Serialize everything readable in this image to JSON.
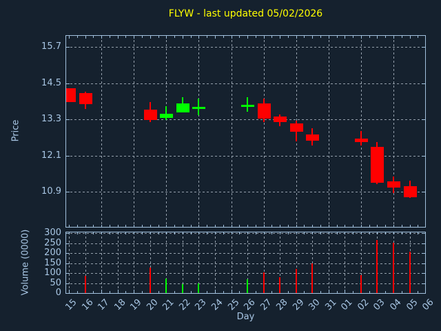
{
  "title": "FLYW - last updated 05/02/2026",
  "colors": {
    "background": "#15212E",
    "frame": "#A3C2DE",
    "tick_label": "#A8C6E4",
    "grid": "#96A1AD",
    "title": "#FFFF00",
    "up": "#00FF00",
    "down": "#FF0000"
  },
  "price_axis": {
    "label": "Price",
    "ticks": [
      15.7,
      14.5,
      13.3,
      12.1,
      10.9
    ]
  },
  "volume_axis": {
    "label": "Volume (0000)",
    "ticks": [
      300,
      250,
      200,
      150,
      100,
      50,
      0
    ]
  },
  "x_axis": {
    "label": "Day",
    "ticks": [
      "15",
      "16",
      "17",
      "18",
      "19",
      "20",
      "21",
      "22",
      "23",
      "24",
      "25",
      "26",
      "27",
      "28",
      "29",
      "30",
      "31",
      "01",
      "02",
      "03",
      "04",
      "05",
      "06"
    ]
  },
  "chart_data": {
    "type": "candlestick",
    "title": "FLYW - last updated 05/02/2026",
    "xlabel": "Day",
    "ylabel_price": "Price",
    "ylabel_volume": "Volume (0000)",
    "grid": "dashed",
    "price_ylim": [
      9.7,
      16.1
    ],
    "volume_ylim": [
      0,
      310
    ],
    "up_color": "#00FF00",
    "down_color": "#FF0000",
    "candles": [
      {
        "day": "15",
        "open": 14.33,
        "high": 14.33,
        "low": 13.87,
        "close": 13.87,
        "volume": null
      },
      {
        "day": "16",
        "open": 14.16,
        "high": 14.22,
        "low": 13.65,
        "close": 13.81,
        "volume": 88
      },
      {
        "day": "20",
        "open": 13.62,
        "high": 13.88,
        "low": 13.21,
        "close": 13.27,
        "volume": 127
      },
      {
        "day": "21",
        "open": 13.35,
        "high": 13.73,
        "low": 13.29,
        "close": 13.48,
        "volume": 74
      },
      {
        "day": "22",
        "open": 13.54,
        "high": 14.03,
        "low": 13.54,
        "close": 13.83,
        "volume": 46
      },
      {
        "day": "23",
        "open": 13.7,
        "high": 14.0,
        "low": 13.44,
        "close": 13.72,
        "volume": 50
      },
      {
        "day": "26",
        "open": 13.76,
        "high": 14.04,
        "low": 13.56,
        "close": 13.78,
        "volume": 70
      },
      {
        "day": "27",
        "open": 13.83,
        "high": 14.0,
        "low": 13.22,
        "close": 13.33,
        "volume": 105
      },
      {
        "day": "28",
        "open": 13.4,
        "high": 13.47,
        "low": 13.08,
        "close": 13.22,
        "volume": 79
      },
      {
        "day": "29",
        "open": 13.17,
        "high": 13.27,
        "low": 12.58,
        "close": 12.9,
        "volume": 120
      },
      {
        "day": "30",
        "open": 12.81,
        "high": 13.0,
        "low": 12.43,
        "close": 12.6,
        "volume": 148
      },
      {
        "day": "02",
        "open": 12.67,
        "high": 12.92,
        "low": 12.43,
        "close": 12.56,
        "volume": 90
      },
      {
        "day": "03",
        "open": 12.4,
        "high": 12.56,
        "low": 11.17,
        "close": 11.21,
        "volume": 268
      },
      {
        "day": "04",
        "open": 11.24,
        "high": 11.42,
        "low": 10.87,
        "close": 11.05,
        "volume": 253
      },
      {
        "day": "05",
        "open": 11.1,
        "high": 11.28,
        "low": 10.7,
        "close": 10.73,
        "volume": 206
      }
    ]
  }
}
